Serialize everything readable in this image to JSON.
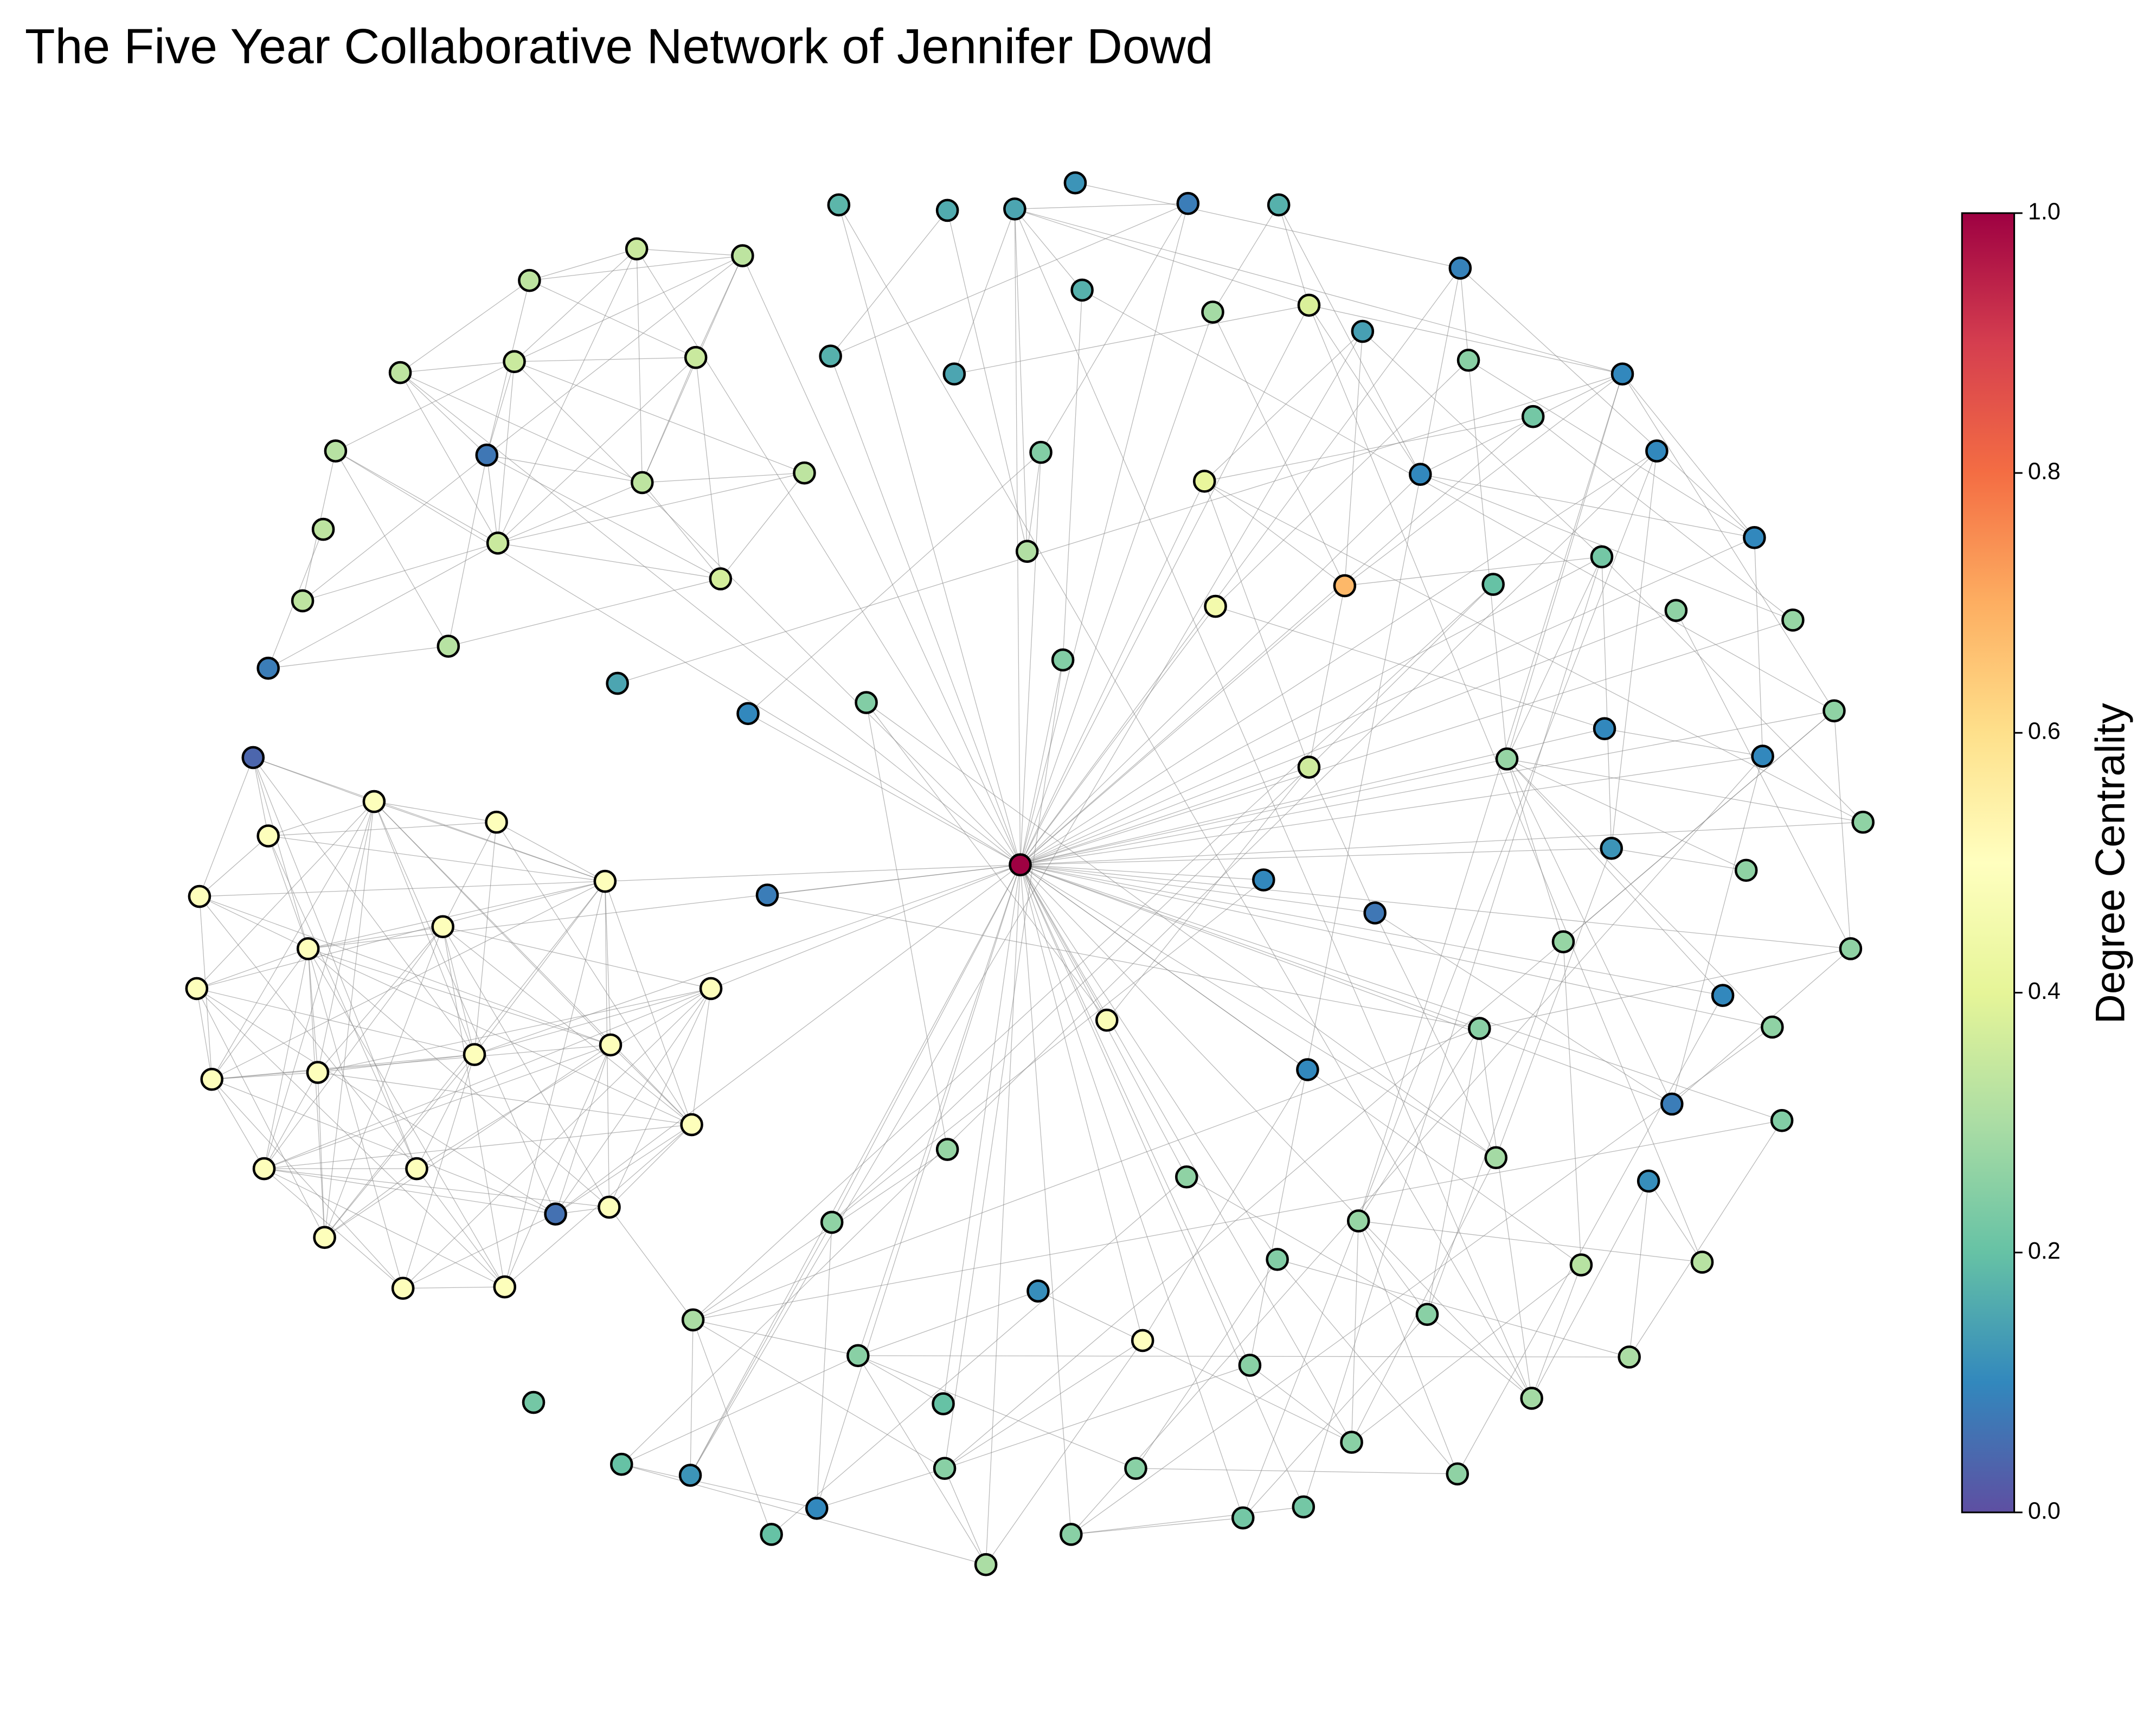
{
  "chart_data": {
    "type": "network",
    "title": "The Five Year Collaborative Network of Jennifer Dowd",
    "colorbar_label": "Degree Centrality",
    "clim": [
      0,
      1
    ],
    "cticks": [
      {
        "value": 0,
        "label": "0.0"
      },
      0.2,
      0.4,
      0.6,
      0.8,
      {
        "value": 1,
        "label": "1.0"
      }
    ],
    "colormap": [
      "#5e4fa2",
      "#3288bd",
      "#66c2a5",
      "#abdda4",
      "#e6f598",
      "#ffffbf",
      "#fee08b",
      "#fdae61",
      "#f46d43",
      "#d53e4f",
      "#9e0142"
    ],
    "values": [
      1.0,
      0.35,
      0.33,
      0.33,
      0.33,
      0.35,
      0.35,
      0.32,
      0.07,
      0.33,
      0.33,
      0.33,
      0.35,
      0.37,
      0.33,
      0.32,
      0.49,
      0.49,
      0.49,
      0.49,
      0.49,
      0.49,
      0.49,
      0.49,
      0.49,
      0.49,
      0.49,
      0.49,
      0.49,
      0.49,
      0.49,
      0.49,
      0.49,
      0.49,
      0.49,
      0.49,
      0.08,
      0.15,
      0.1,
      0.24,
      0.04,
      0.06,
      0.08,
      0.18,
      0.16,
      0.15,
      0.12,
      0.08,
      0.17,
      0.09,
      0.17,
      0.29,
      0.38,
      0.14,
      0.17,
      0.15,
      0.25,
      0.1,
      0.22,
      0.24,
      0.1,
      0.1,
      0.41,
      0.31,
      0.22,
      0.68,
      0.2,
      0.1,
      0.45,
      0.24,
      0.26,
      0.27,
      0.26,
      0.1,
      0.27,
      0.1,
      0.36,
      0.26,
      0.12,
      0.26,
      0.1,
      0.07,
      0.27,
      0.26,
      0.1,
      0.26,
      0.48,
      0.1,
      0.25,
      0.08,
      0.24,
      0.27,
      0.26,
      0.29,
      0.11,
      0.26,
      0.27,
      0.24,
      0.32,
      0.32,
      0.11,
      0.3,
      0.5,
      0.25,
      0.25,
      0.25,
      0.3,
      0.22,
      0.2,
      0.29,
      0.25,
      0.2,
      0.12,
      0.25,
      0.25,
      0.26,
      0.1,
      0.2,
      0.25,
      0.22,
      0.22,
      0.3
    ]
  }
}
